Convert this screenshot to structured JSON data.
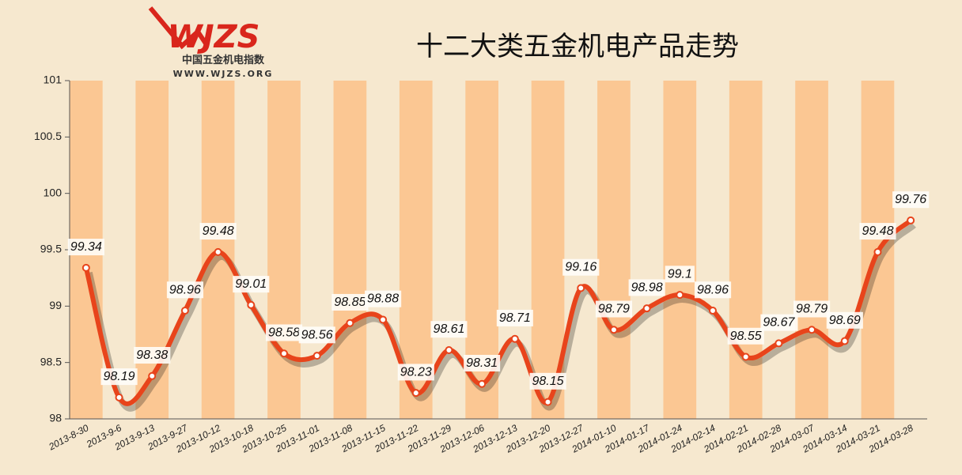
{
  "logo": {
    "mark": "WJZS",
    "name": "中国五金机电指数",
    "url": "WWW.WJZS.ORG"
  },
  "chart_data": {
    "type": "line",
    "title": "十二大类五金机电产品走势",
    "categories": [
      "2013-8-30",
      "2013-9-6",
      "2013-9-13",
      "2013-9-27",
      "2013-10-12",
      "2013-10-18",
      "2013-10-25",
      "2013-11-01",
      "2013-11-08",
      "2013-11-15",
      "2013-11-22",
      "2013-11-29",
      "2013-12-06",
      "2013-12-13",
      "2013-12-20",
      "2013-12-27",
      "2014-01-10",
      "2014-01-17",
      "2014-01-24",
      "2014-02-14",
      "2014-02-21",
      "2014-02-28",
      "2014-03-07",
      "2014-03-14",
      "2014-03-21",
      "2014-03-28"
    ],
    "series": [
      {
        "name": "十二大类五金机电产品",
        "color": "#e8441b",
        "values": [
          99.34,
          98.19,
          98.38,
          98.96,
          99.48,
          99.01,
          98.58,
          98.56,
          98.85,
          98.88,
          98.23,
          98.61,
          98.31,
          98.71,
          98.15,
          99.16,
          98.79,
          98.98,
          99.1,
          98.96,
          98.55,
          98.67,
          98.79,
          98.69,
          99.48,
          99.76
        ]
      }
    ],
    "ylim": [
      98,
      101
    ],
    "yticks": [
      98,
      98.5,
      99,
      99.5,
      100,
      100.5,
      101
    ],
    "stripes": true
  }
}
